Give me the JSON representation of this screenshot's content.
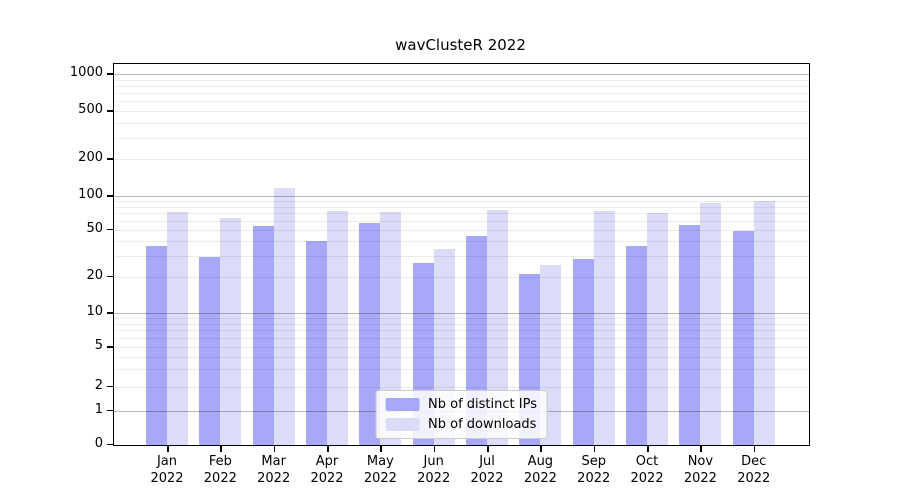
{
  "title": "wavClusteR 2022",
  "chart_data": {
    "type": "bar",
    "title": "wavClusteR 2022",
    "categories": [
      "Jan",
      "Feb",
      "Mar",
      "Apr",
      "May",
      "Jun",
      "Jul",
      "Aug",
      "Sep",
      "Oct",
      "Nov",
      "Dec"
    ],
    "category_year": "2022",
    "series": [
      {
        "name": "Nb of distinct IPs",
        "color": "#a8a8f8",
        "values": [
          36,
          29,
          54,
          40,
          57,
          26,
          44,
          21,
          28,
          36,
          55,
          49
        ]
      },
      {
        "name": "Nb of downloads",
        "color": "#dcdcf8",
        "values": [
          72,
          63,
          116,
          73,
          72,
          34,
          75,
          25,
          73,
          70,
          87,
          90
        ]
      }
    ],
    "yscale": "log-with-zero",
    "ylim": [
      0,
      1100
    ],
    "yticks": [
      0,
      1,
      2,
      5,
      10,
      20,
      50,
      100,
      200,
      500,
      1000
    ],
    "xlabel": "",
    "ylabel": "",
    "grid": true,
    "legend_position": "lower center"
  }
}
